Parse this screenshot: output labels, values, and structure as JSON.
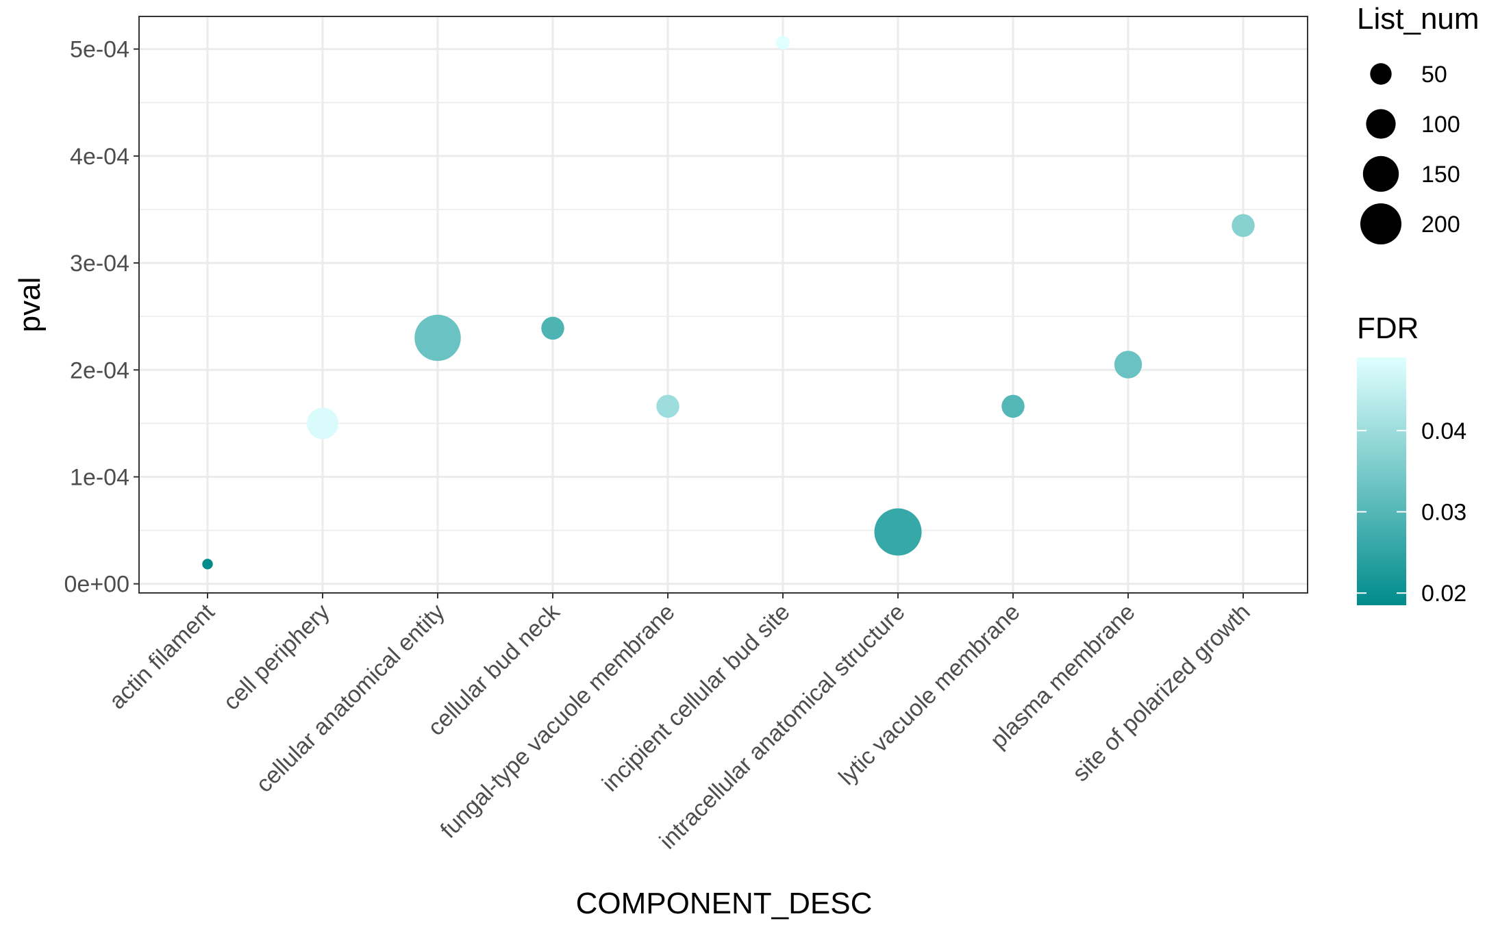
{
  "chart_data": {
    "type": "scatter",
    "xlabel": "COMPONENT_DESC",
    "ylabel": "pval",
    "categories": [
      "actin filament",
      "cell periphery",
      "cellular anatomical entity",
      "cellular bud neck",
      "fungal-type vacuole membrane",
      "incipient cellular bud site",
      "intracellular anatomical structure",
      "lytic vacuole membrane",
      "plasma membrane",
      "site of polarized growth"
    ],
    "y_ticks": [
      {
        "value": 0.0,
        "label": "0e+00"
      },
      {
        "value": 0.0001,
        "label": "1e-04"
      },
      {
        "value": 0.0002,
        "label": "2e-04"
      },
      {
        "value": 0.0003,
        "label": "3e-04"
      },
      {
        "value": 0.0004,
        "label": "4e-04"
      },
      {
        "value": 0.0005,
        "label": "5e-04"
      }
    ],
    "ylim": [
      -8.5e-06,
      0.0005305
    ],
    "grid": true,
    "points": [
      {
        "category": "actin filament",
        "pval": 1.85e-05,
        "fdr": 0.0185,
        "list_num": 8
      },
      {
        "category": "cell periphery",
        "pval": 0.00015,
        "fdr": 0.048,
        "list_num": 95
      },
      {
        "category": "cellular anatomical entity",
        "pval": 0.00023,
        "fdr": 0.033,
        "list_num": 215
      },
      {
        "category": "cellular bud neck",
        "pval": 0.000239,
        "fdr": 0.029,
        "list_num": 48
      },
      {
        "category": "fungal-type vacuole membrane",
        "pval": 0.000166,
        "fdr": 0.04,
        "list_num": 48
      },
      {
        "category": "incipient cellular bud site",
        "pval": 0.000506,
        "fdr": 0.049,
        "list_num": 15
      },
      {
        "category": "intracellular anatomical structure",
        "pval": 4.85e-05,
        "fdr": 0.026,
        "list_num": 225
      },
      {
        "category": "lytic vacuole membrane",
        "pval": 0.000166,
        "fdr": 0.03,
        "list_num": 48
      },
      {
        "category": "plasma membrane",
        "pval": 0.000205,
        "fdr": 0.033,
        "list_num": 72
      },
      {
        "category": "site of polarized growth",
        "pval": 0.000335,
        "fdr": 0.037,
        "list_num": 48
      }
    ],
    "size_legend": {
      "title": "List_num",
      "values": [
        50,
        100,
        150,
        200
      ]
    },
    "color_legend": {
      "title": "FDR",
      "ticks": [
        {
          "value": 0.02,
          "label": "0.02"
        },
        {
          "value": 0.03,
          "label": "0.03"
        },
        {
          "value": 0.04,
          "label": "0.04"
        }
      ],
      "range": [
        0.0185,
        0.049
      ],
      "low_color": "#008B8B",
      "high_color": "#E0FFFF"
    },
    "colors": {
      "panel_border": "#333333",
      "grid_major": "#ebebeb",
      "tick_color": "#333333"
    }
  }
}
